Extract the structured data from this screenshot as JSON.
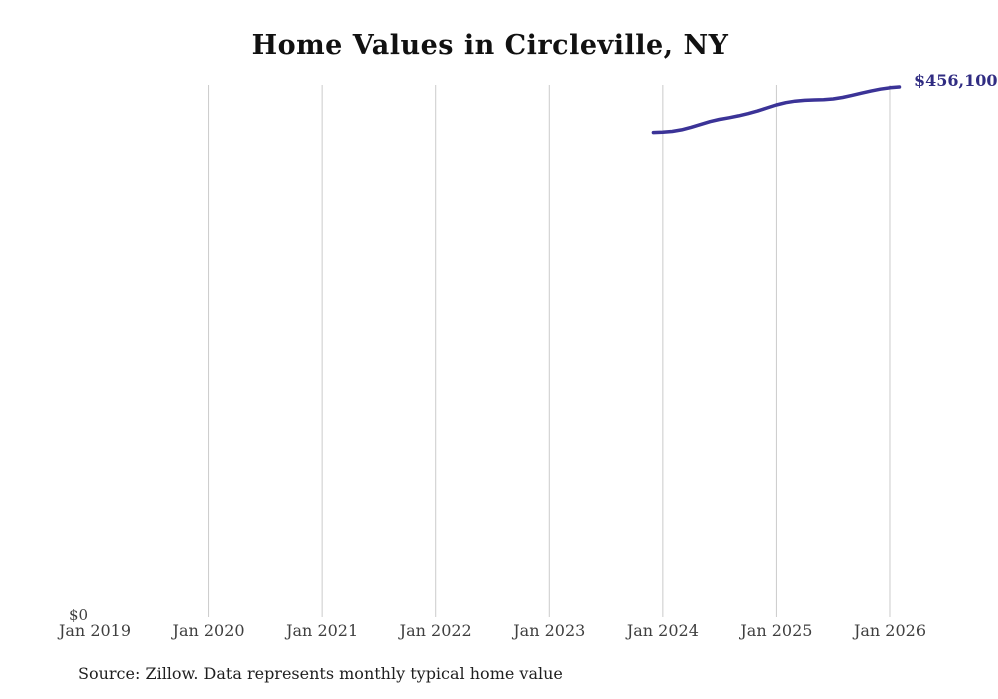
{
  "chart": {
    "title": "Home Values in Circleville, NY",
    "y_zero_label": "$0",
    "end_value_label": "$456,100",
    "source_note": "Source: Zillow. Data represents monthly typical home value",
    "line_color": "#3b3397",
    "end_label_color": "#302c82",
    "gridline_color": "#cbcbcb"
  },
  "chart_data": {
    "type": "line",
    "title": "Home Values in Circleville, NY",
    "xlabel": "",
    "ylabel": "",
    "ylim": [
      0,
      456100
    ],
    "grid": "vertical-only",
    "legend": "none",
    "annotation": "$456,100",
    "x_ticks": [
      {
        "label": "Jan 2019",
        "gridline": false
      },
      {
        "label": "Jan 2020",
        "gridline": true
      },
      {
        "label": "Jan 2021",
        "gridline": true
      },
      {
        "label": "Jan 2022",
        "gridline": true
      },
      {
        "label": "Jan 2023",
        "gridline": true
      },
      {
        "label": "Jan 2024",
        "gridline": true
      },
      {
        "label": "Jan 2025",
        "gridline": true
      },
      {
        "label": "Jan 2026",
        "gridline": true
      }
    ],
    "series": [
      {
        "name": "Monthly typical home value",
        "x": [
          "Dec 2023",
          "Jan 2024",
          "Feb 2024",
          "Mar 2024",
          "Apr 2024",
          "May 2024",
          "Jun 2024",
          "Jul 2024",
          "Aug 2024",
          "Sep 2024",
          "Oct 2024",
          "Nov 2024",
          "Dec 2024",
          "Jan 2025",
          "Feb 2025",
          "Mar 2025",
          "Apr 2025",
          "May 2025",
          "Jun 2025",
          "Jul 2025",
          "Aug 2025",
          "Sep 2025",
          "Oct 2025",
          "Nov 2025",
          "Dec 2025",
          "Jan 2026",
          "Feb 2026"
        ],
        "values": [
          416900,
          417100,
          417800,
          419200,
          421300,
          423700,
          426200,
          428100,
          429600,
          431200,
          433100,
          435400,
          438000,
          440600,
          442600,
          443900,
          444600,
          444900,
          445100,
          445800,
          447100,
          448900,
          450800,
          452600,
          454200,
          455400,
          456100
        ]
      }
    ]
  }
}
